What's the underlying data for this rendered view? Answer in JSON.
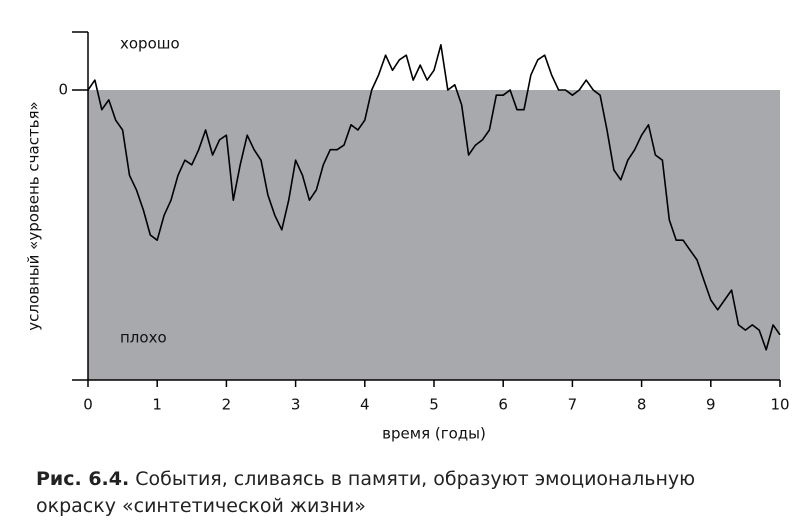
{
  "chart_data": {
    "type": "line",
    "xlabel": "время (годы)",
    "ylabel": "условный «уровень счастья»",
    "annotations": [
      "хорошо",
      "плохо"
    ],
    "xlim": [
      0,
      10
    ],
    "xticks": [
      0,
      1,
      2,
      3,
      4,
      5,
      6,
      7,
      8,
      9,
      10
    ],
    "ylim": [
      -5,
      1
    ],
    "yticks": [
      0
    ],
    "x": [
      0,
      0.1,
      0.2,
      0.3,
      0.4,
      0.5,
      0.6,
      0.7,
      0.8,
      0.9,
      1,
      1.1,
      1.2,
      1.3,
      1.4,
      1.5,
      1.6,
      1.7,
      1.8,
      1.9,
      2,
      2.1,
      2.2,
      2.3,
      2.4,
      2.5,
      2.6,
      2.7,
      2.8,
      2.9,
      3,
      3.1,
      3.2,
      3.3,
      3.4,
      3.5,
      3.6,
      3.7,
      3.8,
      3.9,
      4,
      4.1,
      4.2,
      4.3,
      4.4,
      4.5,
      4.6,
      4.7,
      4.8,
      4.9,
      5,
      5.1,
      5.2,
      5.3,
      5.4,
      5.5,
      5.6,
      5.7,
      5.8,
      5.9,
      6,
      6.1,
      6.2,
      6.3,
      6.4,
      6.5,
      6.6,
      6.7,
      6.8,
      6.9,
      7,
      7.1,
      7.2,
      7.3,
      7.4,
      7.5,
      7.6,
      7.7,
      7.8,
      7.9,
      8,
      8.1,
      8.2,
      8.3,
      8.4,
      8.5,
      8.6,
      8.7,
      8.8,
      8.9,
      9,
      9.1,
      9.2,
      9.3,
      9.4,
      9.5,
      9.6,
      9.7,
      9.8,
      9.9,
      10
    ],
    "values": [
      0,
      0.17,
      -0.34,
      -0.17,
      -0.52,
      -0.69,
      -1.47,
      -1.72,
      -2.07,
      -2.5,
      -2.59,
      -2.16,
      -1.9,
      -1.47,
      -1.21,
      -1.29,
      -1.03,
      -0.69,
      -1.12,
      -0.86,
      -0.78,
      -1.9,
      -1.29,
      -0.78,
      -1.03,
      -1.21,
      -1.81,
      -2.16,
      -2.41,
      -1.9,
      -1.21,
      -1.47,
      -1.9,
      -1.72,
      -1.29,
      -1.03,
      -1.03,
      -0.95,
      -0.6,
      -0.69,
      -0.52,
      0,
      0.26,
      0.6,
      0.34,
      0.52,
      0.6,
      0.17,
      0.43,
      0.17,
      0.34,
      0.78,
      0,
      0.09,
      -0.26,
      -1.12,
      -0.95,
      -0.86,
      -0.69,
      -0.09,
      -0.09,
      0,
      -0.34,
      -0.34,
      0.26,
      0.52,
      0.6,
      0.26,
      0,
      0,
      -0.09,
      0,
      0.17,
      0,
      -0.09,
      -0.69,
      -1.38,
      -1.55,
      -1.21,
      -1.03,
      -0.78,
      -0.6,
      -1.12,
      -1.21,
      -2.24,
      -2.59,
      -2.59,
      -2.76,
      -2.93,
      -3.28,
      -3.62,
      -3.79,
      -3.62,
      -3.45,
      -4.05,
      -4.14,
      -4.05,
      -4.14,
      -4.48,
      -4.05,
      -4.22
    ],
    "color": "#000000",
    "background_color": "#a7a9ac"
  },
  "caption": {
    "label": "Рис. 6.4.",
    "text": "События, сливаясь в памяти, образуют эмоциональную окраску «синтетической жизни»"
  }
}
